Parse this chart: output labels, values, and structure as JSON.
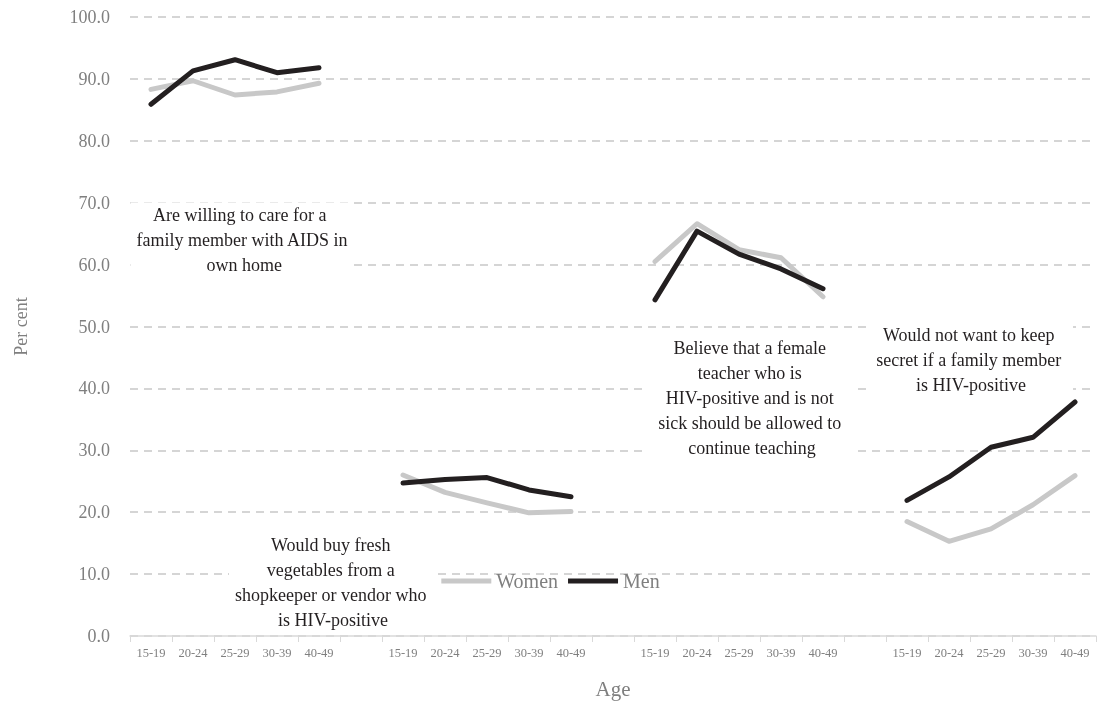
{
  "chart_data": {
    "type": "line",
    "xlabel": "Age",
    "ylabel": "Per cent",
    "categories": [
      "15-19",
      "20-24",
      "25-29",
      "30-39",
      "40-49",
      null,
      "15-19",
      "20-24",
      "25-29",
      "30-39",
      "40-49",
      null,
      "15-19",
      "20-24",
      "25-29",
      "30-39",
      "40-49",
      null,
      "15-19",
      "20-24",
      "25-29",
      "30-39",
      "40-49"
    ],
    "series": [
      {
        "name": "Women",
        "color": "#c8c8c8",
        "values": [
          88.3,
          89.7,
          87.4,
          87.9,
          89.3,
          null,
          26.0,
          23.2,
          21.5,
          19.9,
          20.1,
          null,
          60.5,
          66.6,
          62.4,
          61.1,
          54.8,
          null,
          18.5,
          15.3,
          17.3,
          21.2,
          25.9
        ]
      },
      {
        "name": "Men",
        "color": "#231f20",
        "values": [
          85.9,
          91.3,
          93.1,
          91.0,
          91.8,
          null,
          24.7,
          25.3,
          25.6,
          23.6,
          22.5,
          null,
          54.3,
          65.4,
          61.7,
          59.3,
          56.1,
          null,
          21.9,
          25.7,
          30.5,
          32.1,
          37.8
        ]
      }
    ],
    "ylim": [
      0,
      100
    ],
    "yticks": [
      {
        "value": 0,
        "label": "0.0"
      },
      {
        "value": 10,
        "label": "10.0"
      },
      {
        "value": 20,
        "label": "20.0"
      },
      {
        "value": 30,
        "label": "30.0"
      },
      {
        "value": 40,
        "label": "40.0"
      },
      {
        "value": 50,
        "label": "50.0"
      },
      {
        "value": 60,
        "label": "60.0"
      },
      {
        "value": 70,
        "label": "70.0"
      },
      {
        "value": 80,
        "label": "80.0"
      },
      {
        "value": 90,
        "label": "90.0"
      },
      {
        "value": 100,
        "label": "100.0"
      }
    ],
    "grid": "y",
    "legend": "bottom",
    "marker": "none",
    "line_style": "solid",
    "annotations": [
      "Are willing to care for a family member with AIDS in own home",
      "Would buy fresh vegetables from a shopkeeper or vendor who is HIV-positive",
      "Believe that a female teacher who is HIV-positive and is not sick should be allowed to continue teaching",
      "Would not want to keep secret if a family member is HIV-positive"
    ]
  }
}
